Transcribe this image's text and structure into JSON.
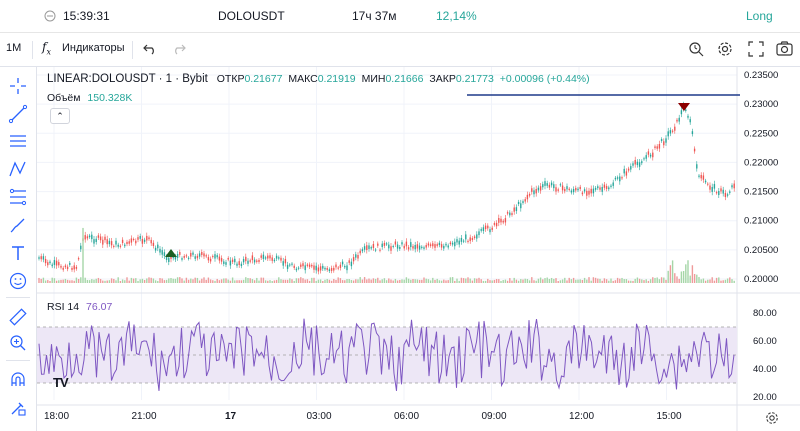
{
  "status": {
    "time": "15:39:31",
    "symbol": "DOLOUSDT",
    "duration": "17ч 37м",
    "percent": "12,14%",
    "side": "Long"
  },
  "toolbar": {
    "interval": "1M",
    "indicators_label": "Индикаторы"
  },
  "legend": {
    "title": "LINEAR:DOLOUSDT · 1 · Bybit",
    "open_label": "ОТКР",
    "open": "0.21677",
    "high_label": "МАКС",
    "high": "0.21919",
    "low_label": "МИН",
    "low": "0.21666",
    "close_label": "ЗАКР",
    "close": "0.21773",
    "change": "+0.00096 (+0.44%)",
    "volume_label": "Объём",
    "volume": "150.328K"
  },
  "rsi": {
    "label": "RSI 14",
    "value": "76.07"
  },
  "price_axis": [
    "0.23500",
    "0.23000",
    "0.22500",
    "0.22000",
    "0.21500",
    "0.21000",
    "0.20500",
    "0.20000"
  ],
  "rsi_axis": [
    "80.00",
    "60.00",
    "40.00",
    "20.00"
  ],
  "time_axis": [
    "18:00",
    "21:00",
    "17",
    "03:00",
    "06:00",
    "09:00",
    "12:00",
    "15:00"
  ],
  "watermark": "TV",
  "colors": {
    "up": "#26a69a",
    "down": "#ef5350",
    "rsi": "#7e57c2",
    "hline": "#1e3a8a",
    "buy": "#1b5e20",
    "sell": "#8b0000"
  }
}
